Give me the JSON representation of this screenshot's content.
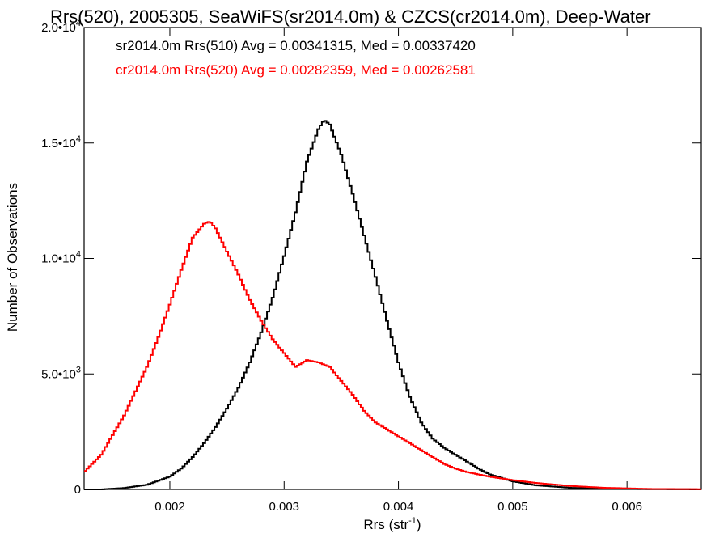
{
  "chart_data": {
    "type": "line",
    "title": "Rrs(520), 2005305, SeaWiFS(sr2014.0m) & CZCS(cr2014.0m), Deep-Water",
    "xlabel": "Rrs (str",
    "xlabel_sup": "-1",
    "xlabel_suffix": ")",
    "ylabel": "Number of Observations",
    "xlim": [
      0.00125,
      0.00665
    ],
    "ylim": [
      0,
      20000
    ],
    "x_ticks": [
      {
        "value": 0.002,
        "label": "0.002"
      },
      {
        "value": 0.003,
        "label": "0.003"
      },
      {
        "value": 0.004,
        "label": "0.004"
      },
      {
        "value": 0.005,
        "label": "0.005"
      },
      {
        "value": 0.006,
        "label": "0.006"
      }
    ],
    "y_ticks": [
      {
        "value": 0,
        "mant": "0",
        "exp": ""
      },
      {
        "value": 5000,
        "mant": "5.0•10",
        "exp": "3"
      },
      {
        "value": 10000,
        "mant": "1.0•10",
        "exp": "4"
      },
      {
        "value": 15000,
        "mant": "1.5•10",
        "exp": "4"
      },
      {
        "value": 20000,
        "mant": "2.0•10",
        "exp": "4"
      }
    ],
    "legend": [
      {
        "text": "sr2014.0m Rrs(510) Avg = 0.00341315, Med = 0.00337420",
        "color": "#000000"
      },
      {
        "text": "cr2014.0m Rrs(520) Avg = 0.00282359, Med = 0.00262581",
        "color": "#ff0000"
      }
    ],
    "legend_placement": "top-left",
    "grid": false,
    "series": [
      {
        "color": "#000000",
        "x": [
          0.00125,
          0.0014,
          0.0016,
          0.0018,
          0.002,
          0.0021,
          0.0022,
          0.0023,
          0.0024,
          0.0025,
          0.0026,
          0.0027,
          0.0028,
          0.0029,
          0.003,
          0.0031,
          0.0032,
          0.0033,
          0.00335,
          0.0034,
          0.0035,
          0.0036,
          0.0037,
          0.0038,
          0.0039,
          0.004,
          0.0041,
          0.0042,
          0.0043,
          0.0044,
          0.0045,
          0.0046,
          0.0047,
          0.0048,
          0.005,
          0.0052,
          0.0055,
          0.0058,
          0.0062,
          0.00665
        ],
        "y": [
          0,
          0,
          60,
          200,
          550,
          900,
          1400,
          2000,
          2700,
          3500,
          4400,
          5500,
          6800,
          8300,
          10100,
          12000,
          14200,
          15600,
          16000,
          15800,
          14500,
          12800,
          11000,
          9200,
          7300,
          5500,
          4000,
          2900,
          2200,
          1800,
          1500,
          1200,
          900,
          650,
          350,
          180,
          70,
          30,
          10,
          0
        ]
      },
      {
        "color": "#ff0000",
        "x": [
          0.00125,
          0.0014,
          0.0016,
          0.0018,
          0.0019,
          0.002,
          0.0021,
          0.0022,
          0.0023,
          0.00235,
          0.0024,
          0.0025,
          0.0026,
          0.0027,
          0.0028,
          0.0029,
          0.003,
          0.0031,
          0.0032,
          0.0033,
          0.0034,
          0.0035,
          0.0036,
          0.0037,
          0.0038,
          0.0039,
          0.004,
          0.0041,
          0.0042,
          0.0043,
          0.0044,
          0.0045,
          0.0046,
          0.0048,
          0.005,
          0.0052,
          0.0055,
          0.0058,
          0.0062,
          0.00665
        ],
        "y": [
          750,
          1500,
          3200,
          5300,
          6600,
          8000,
          9500,
          10900,
          11500,
          11600,
          11300,
          10300,
          9300,
          8200,
          7300,
          6500,
          5900,
          5300,
          5600,
          5500,
          5300,
          4700,
          4100,
          3400,
          2900,
          2600,
          2300,
          2000,
          1700,
          1400,
          1100,
          900,
          750,
          550,
          400,
          280,
          150,
          70,
          20,
          10
        ]
      }
    ]
  }
}
